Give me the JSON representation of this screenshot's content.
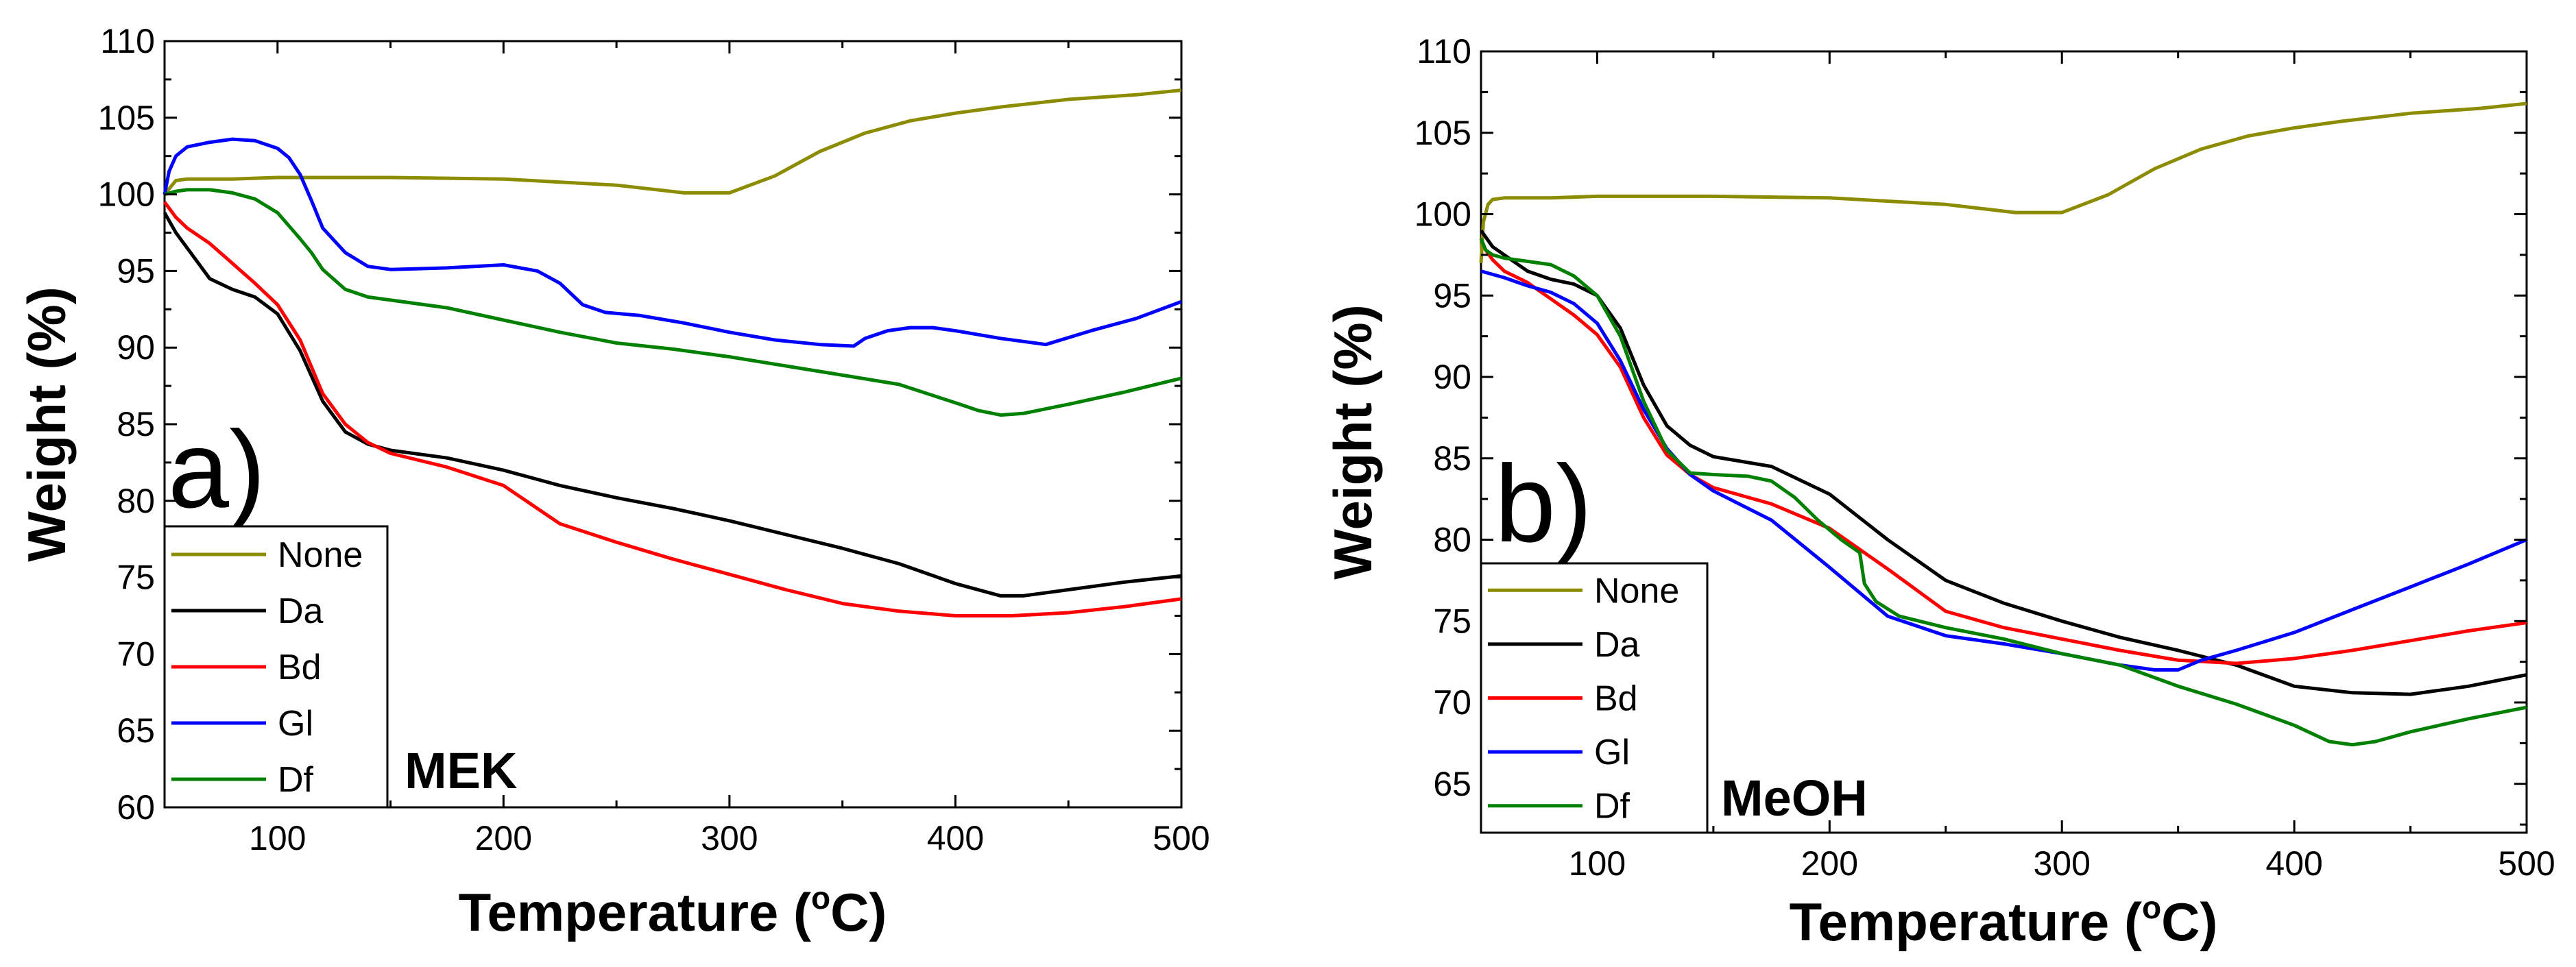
{
  "chart_data": [
    {
      "type": "line",
      "panel_label": "a)",
      "annotation": "MEK",
      "xlabel": "Temperature (°C)",
      "xlabel_main": "Temperature (",
      "xlabel_degree": "o",
      "xlabel_end": "C)",
      "ylabel": "Weight (%)",
      "xlim": [
        50,
        500
      ],
      "ylim": [
        60,
        110
      ],
      "xticks": [
        100,
        200,
        300,
        400,
        500
      ],
      "yticks": [
        60,
        65,
        70,
        75,
        80,
        85,
        90,
        95,
        100,
        105,
        110
      ],
      "legend_position": "bottom-left",
      "grid": false,
      "series": [
        {
          "name": "None",
          "color": "#8c8c00",
          "x": [
            50,
            55,
            60,
            80,
            100,
            150,
            200,
            250,
            280,
            300,
            320,
            340,
            360,
            380,
            400,
            420,
            450,
            480,
            500
          ],
          "y": [
            100,
            100.9,
            101,
            101,
            101.1,
            101.1,
            101,
            100.6,
            100.1,
            100.1,
            101.2,
            102.8,
            104,
            104.8,
            105.3,
            105.7,
            106.2,
            106.5,
            106.8
          ]
        },
        {
          "name": "Da",
          "color": "#000000",
          "x": [
            50,
            55,
            60,
            70,
            80,
            90,
            100,
            110,
            120,
            130,
            140,
            150,
            175,
            200,
            225,
            250,
            275,
            300,
            325,
            350,
            375,
            400,
            420,
            430,
            450,
            475,
            500
          ],
          "y": [
            98.8,
            97.5,
            96.5,
            94.5,
            93.8,
            93.3,
            92.2,
            89.8,
            86.5,
            84.5,
            83.7,
            83.3,
            82.8,
            82,
            81,
            80.2,
            79.5,
            78.7,
            77.8,
            76.9,
            75.9,
            74.6,
            73.8,
            73.8,
            74.2,
            74.7,
            75.1
          ]
        },
        {
          "name": "Bd",
          "color": "#ff0000",
          "x": [
            50,
            55,
            60,
            70,
            80,
            90,
            100,
            110,
            120,
            130,
            140,
            150,
            175,
            200,
            225,
            250,
            275,
            300,
            325,
            350,
            375,
            400,
            425,
            450,
            475,
            500
          ],
          "y": [
            99.5,
            98.5,
            97.8,
            96.8,
            95.5,
            94.2,
            92.8,
            90.5,
            87,
            85,
            83.8,
            83.1,
            82.2,
            81,
            78.5,
            77.3,
            76.2,
            75.2,
            74.2,
            73.3,
            72.8,
            72.5,
            72.5,
            72.7,
            73.1,
            73.6
          ]
        },
        {
          "name": "Gl",
          "color": "#0000ff",
          "x": [
            50,
            52,
            55,
            60,
            70,
            80,
            90,
            100,
            105,
            110,
            115,
            120,
            130,
            140,
            150,
            175,
            200,
            215,
            225,
            235,
            245,
            260,
            280,
            300,
            320,
            340,
            355,
            360,
            370,
            380,
            390,
            400,
            420,
            440,
            460,
            480,
            500
          ],
          "y": [
            100,
            101.5,
            102.5,
            103.1,
            103.4,
            103.6,
            103.5,
            103,
            102.4,
            101.3,
            99.6,
            97.8,
            96.2,
            95.3,
            95.1,
            95.2,
            95.4,
            95,
            94.2,
            92.8,
            92.3,
            92.1,
            91.6,
            91,
            90.5,
            90.2,
            90.1,
            90.6,
            91.1,
            91.3,
            91.3,
            91.1,
            90.6,
            90.2,
            91.1,
            91.9,
            93
          ]
        },
        {
          "name": "Df",
          "color": "#008000",
          "x": [
            50,
            55,
            60,
            70,
            80,
            90,
            100,
            110,
            115,
            120,
            130,
            140,
            150,
            175,
            200,
            225,
            250,
            275,
            300,
            325,
            350,
            375,
            400,
            410,
            420,
            430,
            450,
            475,
            500
          ],
          "y": [
            100,
            100.2,
            100.3,
            100.3,
            100.1,
            99.7,
            98.8,
            97.1,
            96.2,
            95.1,
            93.8,
            93.3,
            93.1,
            92.6,
            91.8,
            91,
            90.3,
            89.9,
            89.4,
            88.8,
            88.2,
            87.6,
            86.4,
            85.9,
            85.6,
            85.7,
            86.3,
            87.1,
            88
          ]
        }
      ]
    },
    {
      "type": "line",
      "panel_label": "b)",
      "annotation": "MeOH",
      "xlabel": "Temperature (°C)",
      "xlabel_main": "Temperature (",
      "xlabel_degree": "o",
      "xlabel_end": "C)",
      "ylabel": "Weight (%)",
      "xlim": [
        50,
        500
      ],
      "ylim": [
        62,
        110
      ],
      "xticks": [
        100,
        200,
        300,
        400,
        500
      ],
      "yticks": [
        65,
        70,
        75,
        80,
        85,
        90,
        95,
        100,
        105,
        110
      ],
      "legend_position": "bottom-left",
      "grid": false,
      "series": [
        {
          "name": "None",
          "color": "#8c8c00",
          "x": [
            50,
            51,
            53,
            55,
            60,
            80,
            100,
            150,
            200,
            250,
            280,
            300,
            320,
            340,
            360,
            380,
            400,
            420,
            450,
            480,
            500
          ],
          "y": [
            97,
            99.5,
            100.6,
            100.9,
            101,
            101,
            101.1,
            101.1,
            101,
            100.6,
            100.1,
            100.1,
            101.2,
            102.8,
            104,
            104.8,
            105.3,
            105.7,
            106.2,
            106.5,
            106.8
          ]
        },
        {
          "name": "Da",
          "color": "#000000",
          "x": [
            50,
            55,
            60,
            70,
            80,
            90,
            100,
            110,
            120,
            130,
            140,
            150,
            175,
            200,
            225,
            250,
            275,
            300,
            325,
            350,
            375,
            400,
            425,
            450,
            475,
            500
          ],
          "y": [
            99,
            98,
            97.5,
            96.5,
            96,
            95.7,
            95,
            93,
            89.5,
            87,
            85.8,
            85.1,
            84.5,
            82.8,
            80,
            77.5,
            76.1,
            75,
            74,
            73.2,
            72.3,
            71,
            70.6,
            70.5,
            71,
            71.7
          ]
        },
        {
          "name": "Bd",
          "color": "#ff0000",
          "x": [
            50,
            52,
            55,
            60,
            70,
            80,
            90,
            100,
            110,
            120,
            130,
            140,
            150,
            175,
            200,
            225,
            250,
            275,
            300,
            325,
            350,
            375,
            400,
            425,
            450,
            475,
            500
          ],
          "y": [
            98.5,
            97.8,
            97.2,
            96.5,
            95.8,
            94.8,
            93.8,
            92.6,
            90.6,
            87.5,
            85.2,
            84,
            83.2,
            82.2,
            80.7,
            78.2,
            75.6,
            74.6,
            73.9,
            73.2,
            72.6,
            72.4,
            72.7,
            73.2,
            73.8,
            74.4,
            74.9
          ]
        },
        {
          "name": "Gl",
          "color": "#0000ff",
          "x": [
            50,
            55,
            60,
            70,
            80,
            90,
            100,
            110,
            120,
            130,
            140,
            150,
            175,
            200,
            225,
            250,
            275,
            300,
            325,
            340,
            350,
            360,
            375,
            400,
            425,
            450,
            475,
            500
          ],
          "y": [
            96.5,
            96.3,
            96.1,
            95.6,
            95.2,
            94.5,
            93.3,
            91,
            88,
            85.6,
            84,
            83,
            81.2,
            78.3,
            75.3,
            74.1,
            73.6,
            73,
            72.3,
            72,
            72,
            72.6,
            73.2,
            74.3,
            75.7,
            77.1,
            78.5,
            80
          ]
        },
        {
          "name": "Df",
          "color": "#008000",
          "x": [
            50,
            52,
            55,
            60,
            70,
            80,
            90,
            100,
            110,
            120,
            130,
            140,
            150,
            165,
            175,
            185,
            195,
            205,
            213,
            215,
            220,
            230,
            250,
            275,
            300,
            325,
            350,
            375,
            400,
            415,
            425,
            435,
            450,
            475,
            500
          ],
          "y": [
            98.5,
            97.8,
            97.5,
            97.3,
            97.1,
            96.9,
            96.2,
            95,
            92.5,
            88.5,
            85.5,
            84.1,
            84,
            83.9,
            83.6,
            82.6,
            81.2,
            80,
            79.2,
            77.3,
            76.2,
            75.3,
            74.6,
            73.9,
            73,
            72.3,
            71,
            69.9,
            68.6,
            67.6,
            67.4,
            67.6,
            68.2,
            69,
            69.7
          ]
        }
      ]
    }
  ]
}
